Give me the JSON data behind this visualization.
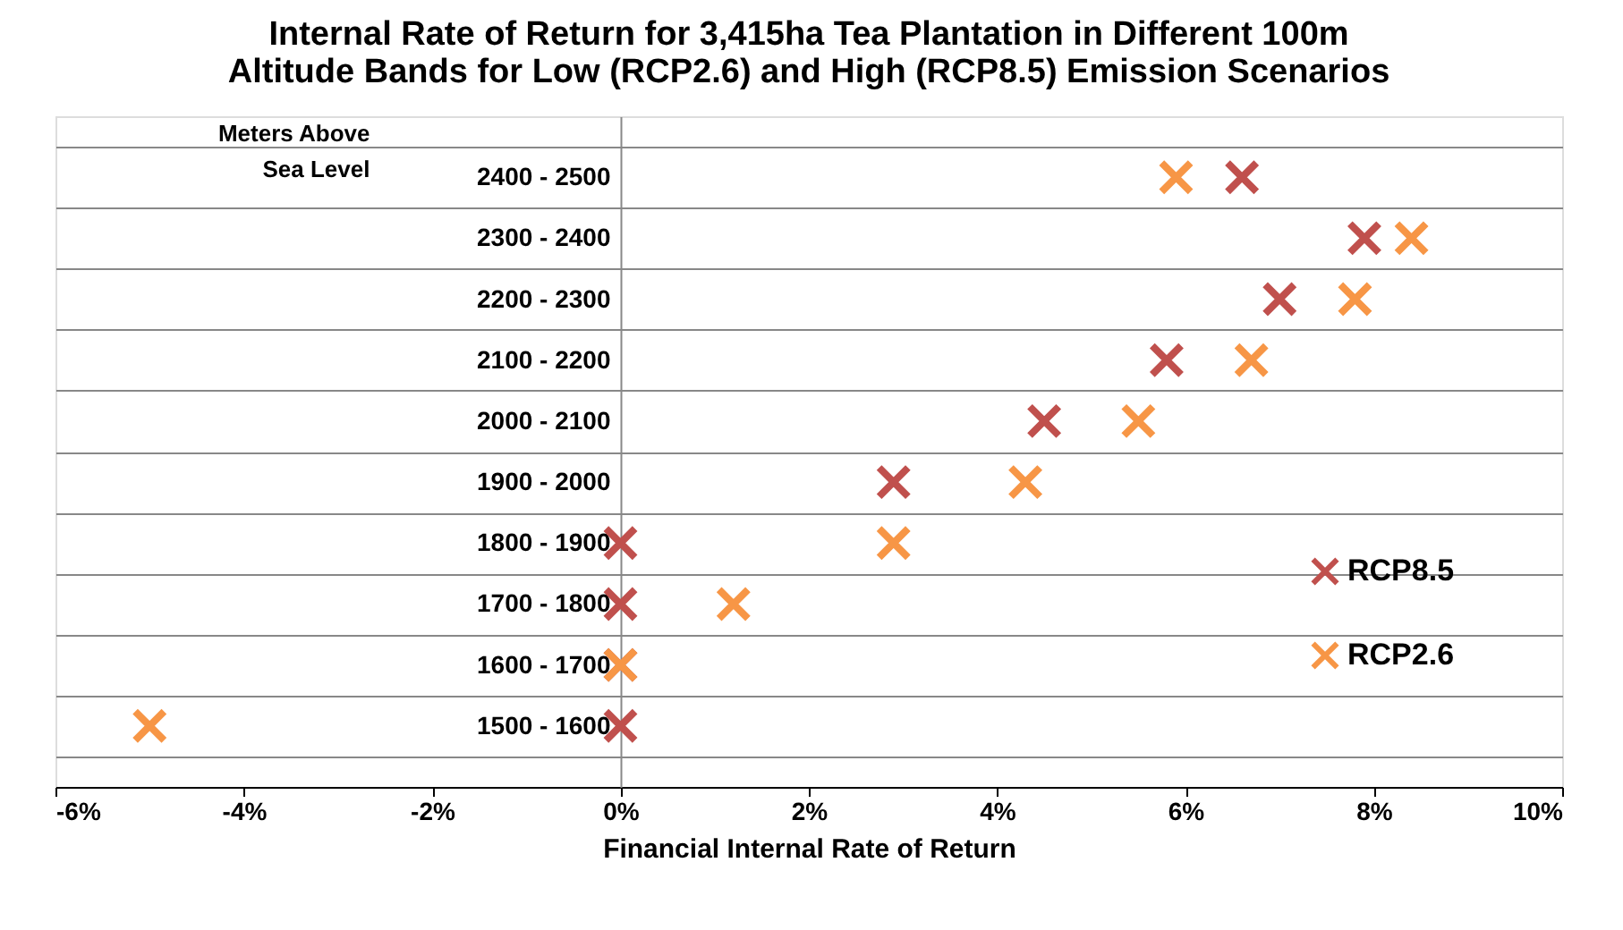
{
  "chart_data": {
    "type": "scatter",
    "orientation": "horizontal",
    "title": "Internal Rate of Return for 3,415ha Tea Plantation in Different 100m\nAltitude Bands for Low (RCP2.6) and High (RCP8.5) Emission Scenarios",
    "xlabel": "Financial Internal Rate of Return",
    "ylabel": "Meters Above\nSea Level",
    "categories": [
      "2400 - 2500",
      "2300 - 2400",
      "2200 - 2300",
      "2100 - 2200",
      "2000 - 2100",
      "1900 - 2000",
      "1800 - 1900",
      "1700 - 1800",
      "1600 - 1700",
      "1500 - 1600"
    ],
    "series": [
      {
        "name": "RCP8.5",
        "color": "#c0504d",
        "values": [
          6.6,
          7.9,
          7.0,
          5.8,
          4.5,
          2.9,
          0,
          0,
          0,
          0
        ]
      },
      {
        "name": "RCP2.6",
        "color": "#f79646",
        "values": [
          5.9,
          8.4,
          7.8,
          6.7,
          5.5,
          4.3,
          2.9,
          1.2,
          0,
          -5.0
        ]
      }
    ],
    "xlim": [
      -6,
      10
    ],
    "xticks": [
      {
        "value": -6,
        "label": "-6%"
      },
      {
        "value": -4,
        "label": "-4%"
      },
      {
        "value": -2,
        "label": "-2%"
      },
      {
        "value": 0,
        "label": "0%"
      },
      {
        "value": 2,
        "label": "2%"
      },
      {
        "value": 4,
        "label": "4%"
      },
      {
        "value": 6,
        "label": "6%"
      },
      {
        "value": 8,
        "label": "8%"
      },
      {
        "value": 10,
        "label": "10%"
      }
    ],
    "grid": "y",
    "legend": "bottom right",
    "marker": "cross"
  }
}
